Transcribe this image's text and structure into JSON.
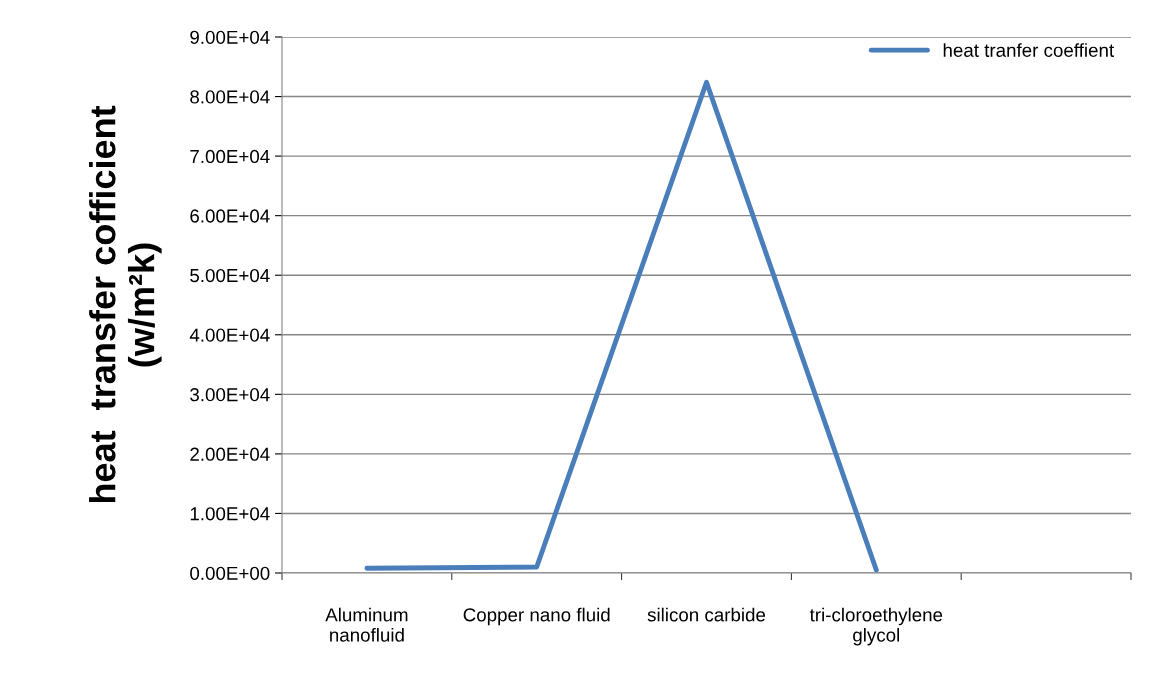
{
  "chart_data": {
    "type": "line",
    "ylabel": "heat  transfer cofficient\n(w/m²k)",
    "categories": [
      "Aluminum\nnanofluid",
      "Copper nano fluid",
      "silicon carbide",
      "tri-cloroethylene\nglycol",
      null
    ],
    "series": [
      {
        "name": "heat tranfer coeffient",
        "color": "#4a7ebb",
        "values": [
          800,
          1000,
          82400,
          500,
          null
        ]
      }
    ],
    "ylim": [
      0,
      90000
    ],
    "yticks": [
      {
        "value": 0,
        "label": "0.00E+00"
      },
      {
        "value": 10000,
        "label": "1.00E+04"
      },
      {
        "value": 20000,
        "label": "2.00E+04"
      },
      {
        "value": 30000,
        "label": "3.00E+04"
      },
      {
        "value": 40000,
        "label": "4.00E+04"
      },
      {
        "value": 50000,
        "label": "5.00E+04"
      },
      {
        "value": 60000,
        "label": "6.00E+04"
      },
      {
        "value": 70000,
        "label": "7.00E+04"
      },
      {
        "value": 80000,
        "label": "8.00E+04"
      },
      {
        "value": 90000,
        "label": "9.00E+04"
      }
    ],
    "grid": "y",
    "legend": "top right",
    "marker": "none",
    "line_style": "solid"
  }
}
